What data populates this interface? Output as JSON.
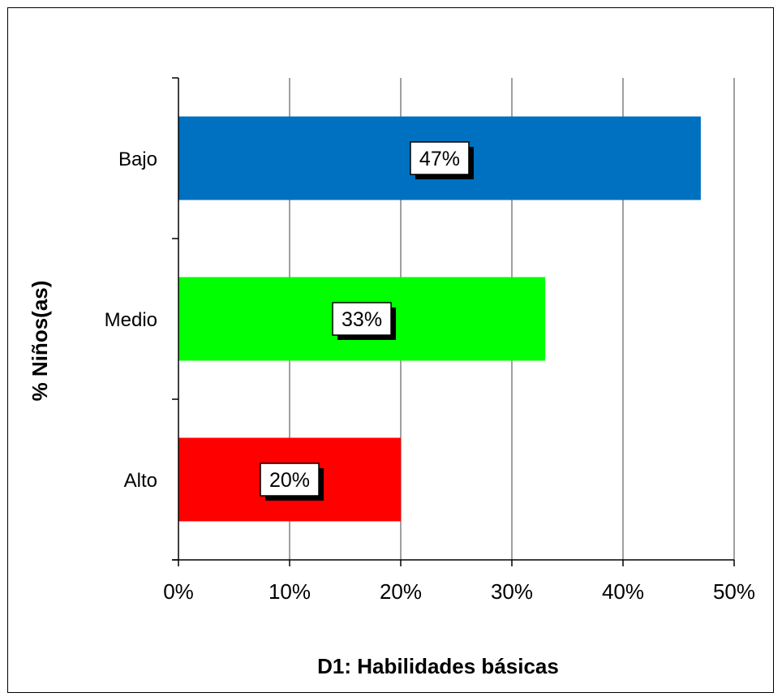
{
  "chart_data": {
    "type": "bar",
    "orientation": "horizontal",
    "categories": [
      "Bajo",
      "Medio",
      "Alto"
    ],
    "values": [
      47,
      33,
      20
    ],
    "data_labels": [
      "47%",
      "33%",
      "20%"
    ],
    "colors": [
      "#0070c0",
      "#00ff00",
      "#ff0000"
    ],
    "title": "",
    "xlabel": "D1: Habilidades básicas",
    "ylabel": "% Niños(as)",
    "xlim": [
      0,
      50
    ],
    "xticks": [
      "0%",
      "10%",
      "20%",
      "30%",
      "40%",
      "50%"
    ],
    "grid": "vertical",
    "legend": "none"
  }
}
